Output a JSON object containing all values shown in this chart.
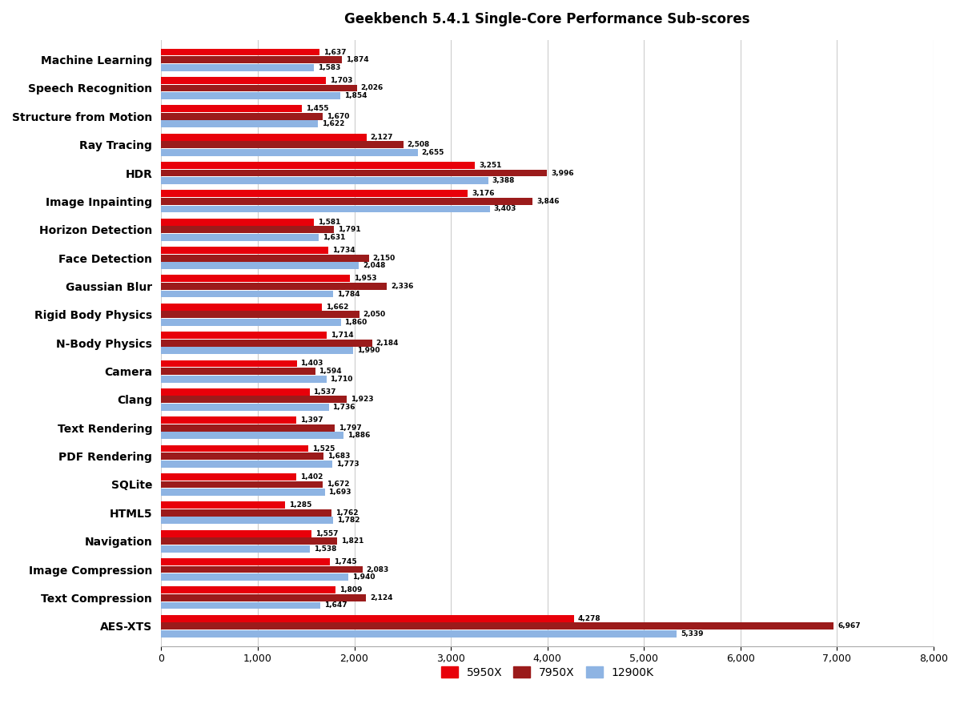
{
  "title": "Geekbench 5.4.1 Single-Core Performance Sub-scores",
  "categories": [
    "Machine Learning",
    "Speech Recognition",
    "Structure from Motion",
    "Ray Tracing",
    "HDR",
    "Image Inpainting",
    "Horizon Detection",
    "Face Detection",
    "Gaussian Blur",
    "Rigid Body Physics",
    "N-Body Physics",
    "Camera",
    "Clang",
    "Text Rendering",
    "PDF Rendering",
    "SQLite",
    "HTML5",
    "Navigation",
    "Image Compression",
    "Text Compression",
    "AES-XTS"
  ],
  "series": {
    "5950X": [
      1637,
      1703,
      1455,
      2127,
      3251,
      3176,
      1581,
      1734,
      1953,
      1662,
      1714,
      1403,
      1537,
      1397,
      1525,
      1402,
      1285,
      1557,
      1745,
      1809,
      4278
    ],
    "7950X": [
      1874,
      2026,
      1670,
      2508,
      3996,
      3846,
      1791,
      2150,
      2336,
      2050,
      2184,
      1594,
      1923,
      1797,
      1683,
      1672,
      1762,
      1821,
      2083,
      2124,
      6967
    ],
    "12900K": [
      1583,
      1854,
      1622,
      2655,
      3388,
      3403,
      1631,
      2048,
      1784,
      1860,
      1990,
      1710,
      1736,
      1886,
      1773,
      1693,
      1782,
      1538,
      1940,
      1647,
      5339
    ]
  },
  "colors": {
    "5950X": "#E8000A",
    "7950X": "#9B1B1B",
    "12900K": "#8EB4E3"
  },
  "xlim": [
    0,
    8000
  ],
  "xticks": [
    0,
    1000,
    2000,
    3000,
    4000,
    5000,
    6000,
    7000,
    8000
  ],
  "background_color": "#FFFFFF",
  "grid_color": "#CCCCCC",
  "bar_height": 0.25,
  "bar_gap": 0.02
}
